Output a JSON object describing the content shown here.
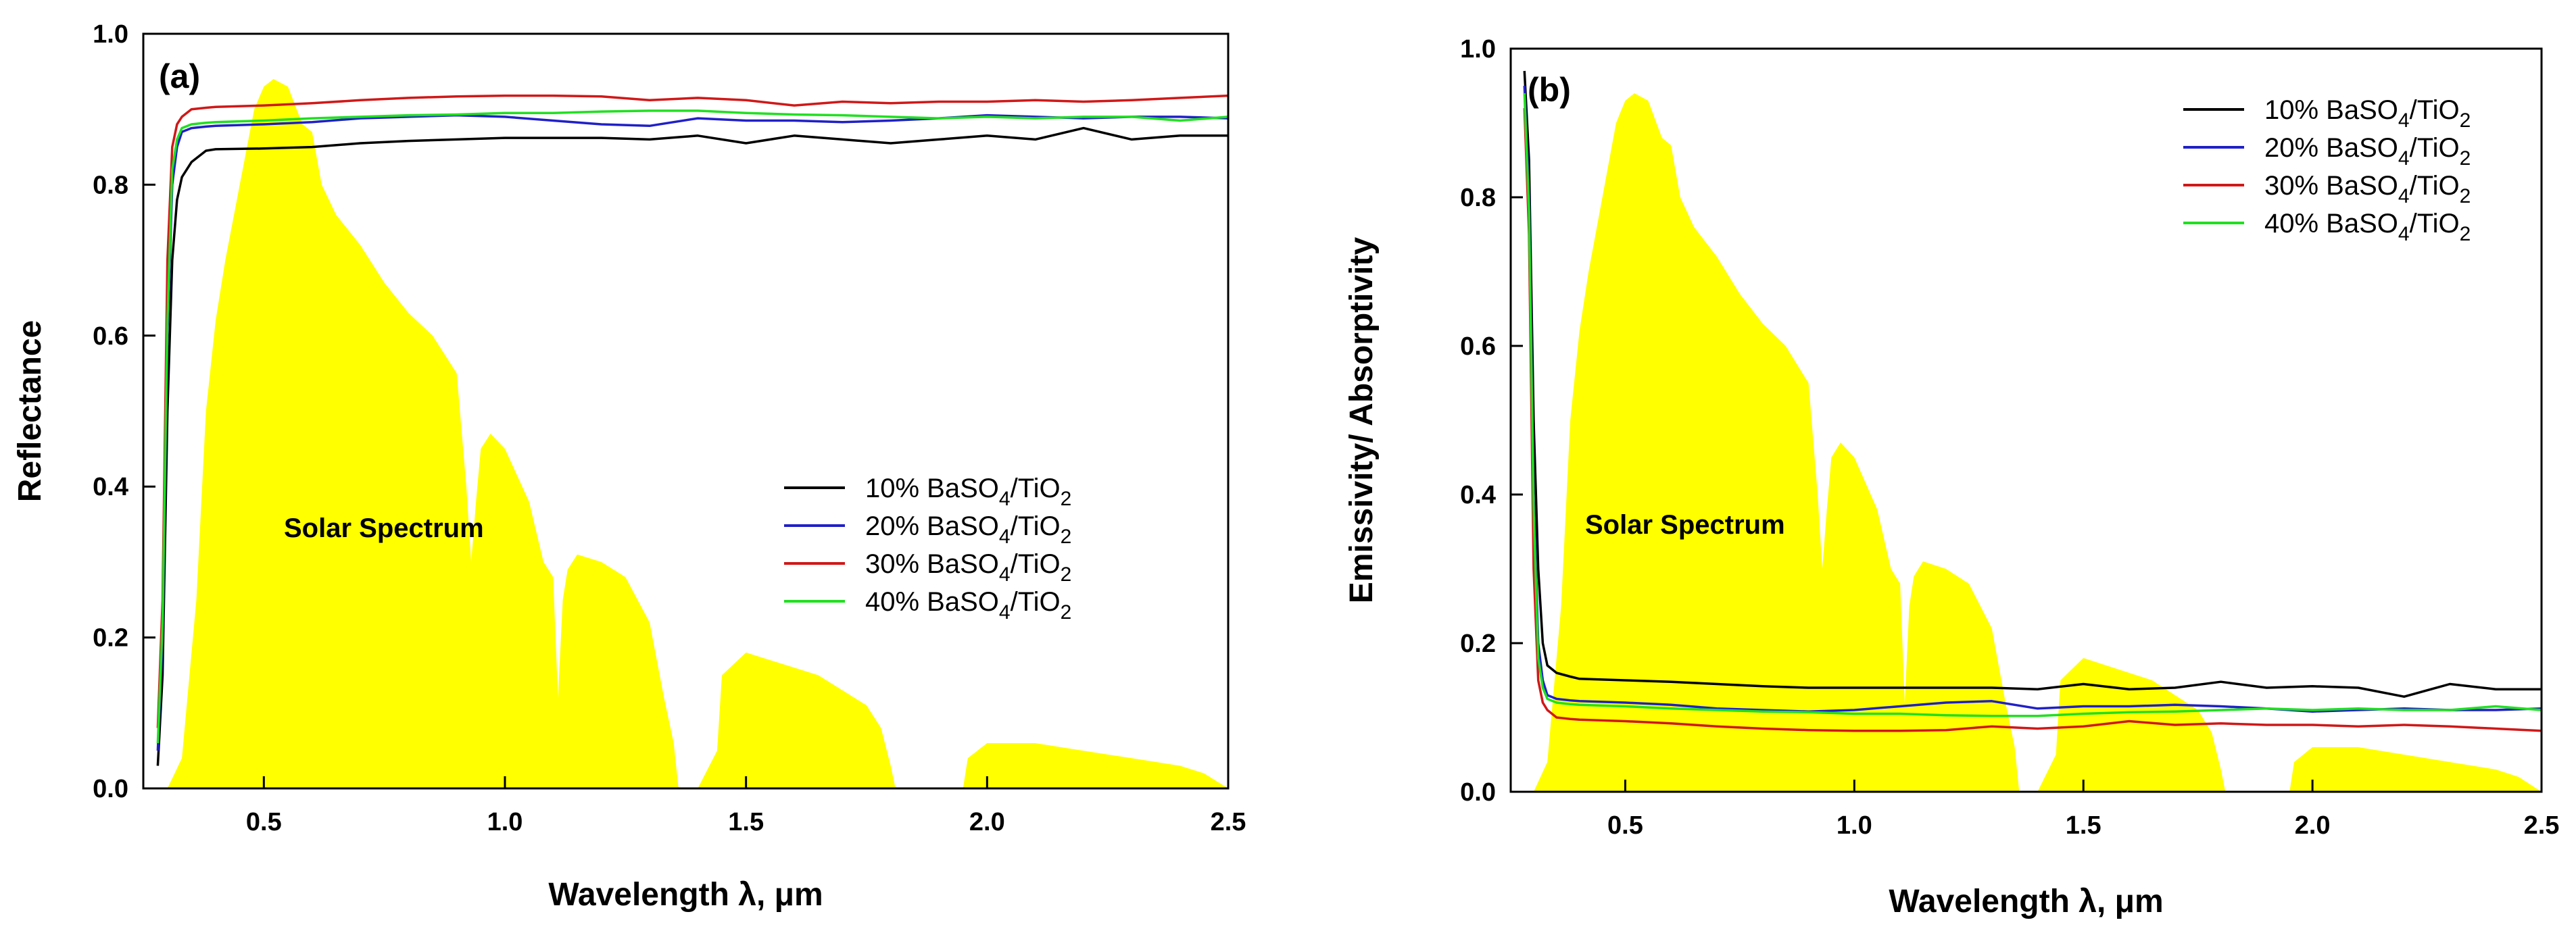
{
  "figure": {
    "panels": [
      "a",
      "b"
    ]
  },
  "chart_data": [
    {
      "type": "line",
      "panel_label": "(a)",
      "xlabel": "Wavelength λ, μm",
      "ylabel": "Reflectance",
      "xlim": [
        0.25,
        2.5
      ],
      "ylim": [
        0.0,
        1.0
      ],
      "xticks": [
        "0.5",
        "1.0",
        "1.5",
        "2.0",
        "2.5"
      ],
      "yticks": [
        "0.0",
        "0.2",
        "0.4",
        "0.6",
        "0.8",
        "1.0"
      ],
      "annotation": "Solar Spectrum",
      "legend_position": "center-right",
      "legend": [
        {
          "pre": "10% BaSO",
          "s1": "4",
          "mid": "/TiO",
          "s2": "2"
        },
        {
          "pre": "20% BaSO",
          "s1": "4",
          "mid": "/TiO",
          "s2": "2"
        },
        {
          "pre": "30% BaSO",
          "s1": "4",
          "mid": "/TiO",
          "s2": "2"
        },
        {
          "pre": "40% BaSO",
          "s1": "4",
          "mid": "/TiO",
          "s2": "2"
        }
      ],
      "solar_spectrum": {
        "x": [
          0.25,
          0.3,
          0.33,
          0.36,
          0.38,
          0.4,
          0.42,
          0.45,
          0.48,
          0.5,
          0.52,
          0.55,
          0.58,
          0.6,
          0.62,
          0.65,
          0.7,
          0.75,
          0.8,
          0.85,
          0.88,
          0.9,
          0.92,
          0.93,
          0.94,
          0.95,
          0.97,
          1.0,
          1.05,
          1.08,
          1.1,
          1.11,
          1.12,
          1.13,
          1.15,
          1.2,
          1.25,
          1.3,
          1.33,
          1.35,
          1.36,
          1.4,
          1.44,
          1.45,
          1.5,
          1.55,
          1.6,
          1.65,
          1.7,
          1.75,
          1.78,
          1.8,
          1.81,
          1.95,
          1.96,
          2.0,
          2.1,
          2.2,
          2.3,
          2.4,
          2.45,
          2.5
        ],
        "values": [
          0,
          0,
          0.04,
          0.25,
          0.5,
          0.62,
          0.7,
          0.8,
          0.9,
          0.93,
          0.94,
          0.93,
          0.88,
          0.87,
          0.8,
          0.76,
          0.72,
          0.67,
          0.63,
          0.6,
          0.57,
          0.55,
          0.4,
          0.3,
          0.38,
          0.45,
          0.47,
          0.45,
          0.38,
          0.3,
          0.28,
          0.12,
          0.25,
          0.29,
          0.31,
          0.3,
          0.28,
          0.22,
          0.12,
          0.06,
          0.0,
          0.0,
          0.05,
          0.15,
          0.18,
          0.17,
          0.16,
          0.15,
          0.13,
          0.11,
          0.08,
          0.03,
          0.0,
          0.0,
          0.04,
          0.06,
          0.06,
          0.05,
          0.04,
          0.03,
          0.02,
          0.0
        ],
        "color": "#ffff00"
      },
      "series": [
        {
          "name": "10% BaSO4/TiO2",
          "color": "#000000",
          "x": [
            0.28,
            0.29,
            0.3,
            0.31,
            0.32,
            0.33,
            0.35,
            0.38,
            0.4,
            0.5,
            0.6,
            0.7,
            0.8,
            0.9,
            1.0,
            1.1,
            1.2,
            1.3,
            1.4,
            1.5,
            1.6,
            1.7,
            1.8,
            1.9,
            2.0,
            2.1,
            2.2,
            2.3,
            2.4,
            2.5
          ],
          "values": [
            0.03,
            0.15,
            0.5,
            0.7,
            0.78,
            0.81,
            0.83,
            0.845,
            0.847,
            0.848,
            0.85,
            0.855,
            0.858,
            0.86,
            0.862,
            0.862,
            0.862,
            0.86,
            0.865,
            0.855,
            0.865,
            0.86,
            0.855,
            0.86,
            0.865,
            0.86,
            0.875,
            0.86,
            0.865,
            0.865
          ]
        },
        {
          "name": "20% BaSO4/TiO2",
          "color": "#2020c8",
          "x": [
            0.28,
            0.29,
            0.3,
            0.31,
            0.32,
            0.33,
            0.35,
            0.38,
            0.4,
            0.5,
            0.6,
            0.7,
            0.8,
            0.9,
            1.0,
            1.1,
            1.2,
            1.3,
            1.4,
            1.5,
            1.6,
            1.7,
            1.8,
            1.9,
            2.0,
            2.1,
            2.2,
            2.3,
            2.4,
            2.5
          ],
          "values": [
            0.05,
            0.2,
            0.6,
            0.8,
            0.85,
            0.87,
            0.875,
            0.877,
            0.878,
            0.88,
            0.883,
            0.888,
            0.89,
            0.892,
            0.89,
            0.885,
            0.88,
            0.878,
            0.888,
            0.885,
            0.885,
            0.883,
            0.885,
            0.888,
            0.892,
            0.89,
            0.888,
            0.89,
            0.89,
            0.888
          ]
        },
        {
          "name": "30% BaSO4/TiO2",
          "color": "#d01818",
          "x": [
            0.28,
            0.29,
            0.3,
            0.31,
            0.32,
            0.33,
            0.35,
            0.38,
            0.4,
            0.5,
            0.6,
            0.7,
            0.8,
            0.9,
            1.0,
            1.1,
            1.2,
            1.3,
            1.4,
            1.5,
            1.6,
            1.7,
            1.8,
            1.9,
            2.0,
            2.1,
            2.2,
            2.3,
            2.4,
            2.5
          ],
          "values": [
            0.08,
            0.25,
            0.7,
            0.85,
            0.88,
            0.89,
            0.9,
            0.902,
            0.903,
            0.905,
            0.908,
            0.912,
            0.915,
            0.917,
            0.918,
            0.918,
            0.917,
            0.912,
            0.915,
            0.912,
            0.905,
            0.91,
            0.908,
            0.91,
            0.91,
            0.912,
            0.91,
            0.912,
            0.915,
            0.918
          ]
        },
        {
          "name": "40% BaSO4/TiO2",
          "color": "#20e020",
          "x": [
            0.28,
            0.29,
            0.3,
            0.31,
            0.32,
            0.33,
            0.35,
            0.38,
            0.4,
            0.5,
            0.6,
            0.7,
            0.8,
            0.9,
            1.0,
            1.1,
            1.2,
            1.3,
            1.4,
            1.5,
            1.6,
            1.7,
            1.8,
            1.9,
            2.0,
            2.1,
            2.2,
            2.3,
            2.4,
            2.5
          ],
          "values": [
            0.06,
            0.22,
            0.62,
            0.82,
            0.86,
            0.875,
            0.88,
            0.882,
            0.883,
            0.885,
            0.888,
            0.89,
            0.892,
            0.893,
            0.895,
            0.895,
            0.897,
            0.898,
            0.898,
            0.895,
            0.893,
            0.892,
            0.89,
            0.888,
            0.89,
            0.888,
            0.89,
            0.89,
            0.885,
            0.89
          ]
        }
      ]
    },
    {
      "type": "line",
      "panel_label": "(b)",
      "xlabel": "Wavelength λ, μm",
      "ylabel": "Emissivity/ Absorptivity",
      "xlim": [
        0.25,
        2.5
      ],
      "ylim": [
        0.0,
        1.0
      ],
      "xticks": [
        "0.5",
        "1.0",
        "1.5",
        "2.0",
        "2.5"
      ],
      "yticks": [
        "0.0",
        "0.2",
        "0.4",
        "0.6",
        "0.8",
        "1.0"
      ],
      "annotation": "Solar Spectrum",
      "legend_position": "top-right",
      "legend": [
        {
          "pre": "10% BaSO",
          "s1": "4",
          "mid": "/TiO",
          "s2": "2"
        },
        {
          "pre": "20% BaSO",
          "s1": "4",
          "mid": "/TiO",
          "s2": "2"
        },
        {
          "pre": "30% BaSO",
          "s1": "4",
          "mid": "/TiO",
          "s2": "2"
        },
        {
          "pre": "40% BaSO",
          "s1": "4",
          "mid": "/TiO",
          "s2": "2"
        }
      ],
      "solar_spectrum": {
        "x": [
          0.25,
          0.3,
          0.33,
          0.36,
          0.38,
          0.4,
          0.42,
          0.45,
          0.48,
          0.5,
          0.52,
          0.55,
          0.58,
          0.6,
          0.62,
          0.65,
          0.7,
          0.75,
          0.8,
          0.85,
          0.88,
          0.9,
          0.92,
          0.93,
          0.94,
          0.95,
          0.97,
          1.0,
          1.05,
          1.08,
          1.1,
          1.11,
          1.12,
          1.13,
          1.15,
          1.2,
          1.25,
          1.3,
          1.33,
          1.35,
          1.36,
          1.4,
          1.44,
          1.45,
          1.5,
          1.55,
          1.6,
          1.65,
          1.7,
          1.75,
          1.78,
          1.8,
          1.81,
          1.95,
          1.96,
          2.0,
          2.1,
          2.2,
          2.3,
          2.4,
          2.45,
          2.5
        ],
        "values": [
          0,
          0,
          0.04,
          0.25,
          0.5,
          0.62,
          0.7,
          0.8,
          0.9,
          0.93,
          0.94,
          0.93,
          0.88,
          0.87,
          0.8,
          0.76,
          0.72,
          0.67,
          0.63,
          0.6,
          0.57,
          0.55,
          0.4,
          0.3,
          0.38,
          0.45,
          0.47,
          0.45,
          0.38,
          0.3,
          0.28,
          0.12,
          0.25,
          0.29,
          0.31,
          0.3,
          0.28,
          0.22,
          0.12,
          0.06,
          0.0,
          0.0,
          0.05,
          0.15,
          0.18,
          0.17,
          0.16,
          0.15,
          0.13,
          0.11,
          0.08,
          0.03,
          0.0,
          0.0,
          0.04,
          0.06,
          0.06,
          0.05,
          0.04,
          0.03,
          0.02,
          0.0
        ],
        "color": "#ffff00"
      },
      "series": [
        {
          "name": "10% BaSO4/TiO2",
          "color": "#000000",
          "x": [
            0.28,
            0.29,
            0.3,
            0.31,
            0.32,
            0.33,
            0.35,
            0.38,
            0.4,
            0.5,
            0.6,
            0.7,
            0.8,
            0.9,
            1.0,
            1.1,
            1.2,
            1.3,
            1.4,
            1.5,
            1.6,
            1.7,
            1.8,
            1.9,
            2.0,
            2.1,
            2.2,
            2.3,
            2.4,
            2.5
          ],
          "values": [
            0.97,
            0.85,
            0.5,
            0.3,
            0.2,
            0.17,
            0.16,
            0.155,
            0.152,
            0.15,
            0.148,
            0.145,
            0.142,
            0.14,
            0.14,
            0.14,
            0.14,
            0.14,
            0.138,
            0.145,
            0.138,
            0.14,
            0.148,
            0.14,
            0.142,
            0.14,
            0.128,
            0.145,
            0.138,
            0.138
          ]
        },
        {
          "name": "20% BaSO4/TiO2",
          "color": "#2020c8",
          "x": [
            0.28,
            0.29,
            0.3,
            0.31,
            0.32,
            0.33,
            0.35,
            0.38,
            0.4,
            0.5,
            0.6,
            0.7,
            0.8,
            0.9,
            1.0,
            1.1,
            1.2,
            1.3,
            1.4,
            1.5,
            1.6,
            1.7,
            1.8,
            1.9,
            2.0,
            2.1,
            2.2,
            2.3,
            2.4,
            2.5
          ],
          "values": [
            0.95,
            0.8,
            0.4,
            0.2,
            0.15,
            0.13,
            0.125,
            0.123,
            0.122,
            0.12,
            0.117,
            0.112,
            0.11,
            0.108,
            0.11,
            0.115,
            0.12,
            0.122,
            0.112,
            0.115,
            0.115,
            0.117,
            0.115,
            0.112,
            0.108,
            0.11,
            0.112,
            0.11,
            0.11,
            0.112
          ]
        },
        {
          "name": "30% BaSO4/TiO2",
          "color": "#d01818",
          "x": [
            0.28,
            0.29,
            0.3,
            0.31,
            0.32,
            0.33,
            0.35,
            0.38,
            0.4,
            0.5,
            0.6,
            0.7,
            0.8,
            0.9,
            1.0,
            1.1,
            1.2,
            1.3,
            1.4,
            1.5,
            1.6,
            1.7,
            1.8,
            1.9,
            2.0,
            2.1,
            2.2,
            2.3,
            2.4,
            2.5
          ],
          "values": [
            0.92,
            0.75,
            0.3,
            0.15,
            0.12,
            0.11,
            0.1,
            0.098,
            0.097,
            0.095,
            0.092,
            0.088,
            0.085,
            0.083,
            0.082,
            0.082,
            0.083,
            0.088,
            0.085,
            0.088,
            0.095,
            0.09,
            0.092,
            0.09,
            0.09,
            0.088,
            0.09,
            0.088,
            0.085,
            0.082
          ]
        },
        {
          "name": "40% BaSO4/TiO2",
          "color": "#20e020",
          "x": [
            0.28,
            0.29,
            0.3,
            0.31,
            0.32,
            0.33,
            0.35,
            0.38,
            0.4,
            0.5,
            0.6,
            0.7,
            0.8,
            0.9,
            1.0,
            1.1,
            1.2,
            1.3,
            1.4,
            1.5,
            1.6,
            1.7,
            1.8,
            1.9,
            2.0,
            2.1,
            2.2,
            2.3,
            2.4,
            2.5
          ],
          "values": [
            0.94,
            0.78,
            0.38,
            0.18,
            0.14,
            0.125,
            0.12,
            0.118,
            0.117,
            0.115,
            0.112,
            0.11,
            0.108,
            0.107,
            0.105,
            0.105,
            0.103,
            0.102,
            0.102,
            0.105,
            0.107,
            0.108,
            0.11,
            0.112,
            0.11,
            0.112,
            0.11,
            0.11,
            0.115,
            0.11
          ]
        }
      ]
    }
  ]
}
